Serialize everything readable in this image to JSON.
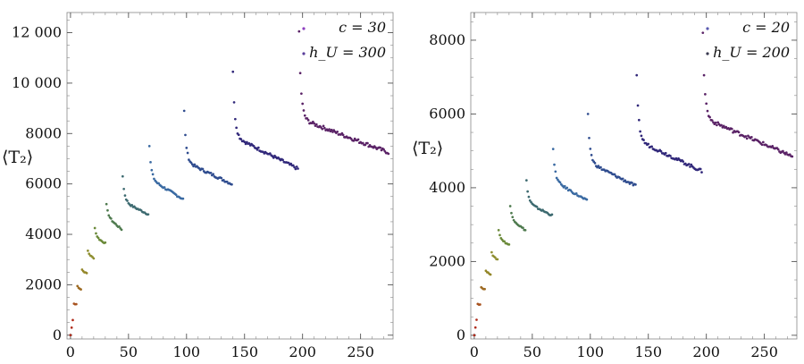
{
  "chart_data": [
    {
      "type": "scatter",
      "ylabel": "⟨T₂⟩",
      "xlim": [
        -3,
        278
      ],
      "ylim": [
        -150,
        12800
      ],
      "x_ticks": [
        0,
        50,
        100,
        150,
        200,
        250
      ],
      "x_tick_labels": [
        "0",
        "50",
        "100",
        "150",
        "200",
        "250"
      ],
      "y_ticks": [
        0,
        2000,
        4000,
        6000,
        8000,
        10000,
        12000
      ],
      "y_tick_labels": [
        "0",
        "2000",
        "4000",
        "6000",
        "8000",
        "10 000",
        "12 000"
      ],
      "legend_position": "top-right",
      "legend": [
        {
          "label": "c = 30",
          "color": "#8e3fc0"
        },
        {
          "label": "h_U = 300",
          "color": "#5a3e9a"
        }
      ],
      "grid": false,
      "segments": [
        {
          "x0": 0,
          "x1": 2,
          "peak": 20,
          "start": 0,
          "end": 600,
          "color": "#b02a1a"
        },
        {
          "x0": 3,
          "x1": 5,
          "peak": 1250,
          "start": 1150,
          "end": 1200,
          "color": "#a8521e"
        },
        {
          "x0": 6,
          "x1": 9,
          "peak": 1950,
          "start": 1850,
          "end": 1800,
          "color": "#9d6a22"
        },
        {
          "x0": 10,
          "x1": 14,
          "peak": 2600,
          "start": 2500,
          "end": 2450,
          "color": "#938628"
        },
        {
          "x0": 15,
          "x1": 20,
          "peak": 3350,
          "start": 3150,
          "end": 3050,
          "color": "#8f8f32"
        },
        {
          "x0": 21,
          "x1": 30,
          "peak": 4250,
          "start": 3850,
          "end": 3650,
          "color": "#6b8a3a"
        },
        {
          "x0": 31,
          "x1": 44,
          "peak": 5200,
          "start": 4700,
          "end": 4200,
          "color": "#4e7a4e"
        },
        {
          "x0": 45,
          "x1": 67,
          "peak": 6300,
          "start": 5300,
          "end": 4800,
          "color": "#3d6a70"
        },
        {
          "x0": 68,
          "x1": 97,
          "peak": 7500,
          "start": 6200,
          "end": 5400,
          "color": "#3a6aa2"
        },
        {
          "x0": 98,
          "x1": 139,
          "peak": 8900,
          "start": 6900,
          "end": 6000,
          "color": "#2f4c8f"
        },
        {
          "x0": 140,
          "x1": 196,
          "peak": 10450,
          "start": 7900,
          "end": 6600,
          "color": "#31287a"
        },
        {
          "x0": 197,
          "x1": 274,
          "peak": 12050,
          "start": 8600,
          "end": 7250,
          "color": "#5a2266"
        }
      ]
    },
    {
      "type": "scatter",
      "ylabel": "⟨T₂⟩",
      "xlim": [
        -3,
        278
      ],
      "ylim": [
        -100,
        8750
      ],
      "x_ticks": [
        0,
        50,
        100,
        150,
        200,
        250
      ],
      "x_tick_labels": [
        "0",
        "50",
        "100",
        "150",
        "200",
        "250"
      ],
      "y_ticks": [
        0,
        2000,
        4000,
        6000,
        8000
      ],
      "y_tick_labels": [
        "0",
        "2000",
        "4000",
        "6000",
        "8000"
      ],
      "legend_position": "top-right",
      "legend": [
        {
          "label": "c = 20",
          "color": "#5a5ab0"
        },
        {
          "label": "h_U = 200",
          "color": "#3a3a50"
        }
      ],
      "grid": false,
      "segments": [
        {
          "x0": 0,
          "x1": 2,
          "peak": 20,
          "start": 0,
          "end": 420,
          "color": "#b02a1a"
        },
        {
          "x0": 3,
          "x1": 5,
          "peak": 850,
          "start": 800,
          "end": 820,
          "color": "#a8521e"
        },
        {
          "x0": 6,
          "x1": 9,
          "peak": 1300,
          "start": 1250,
          "end": 1240,
          "color": "#9d6a22"
        },
        {
          "x0": 10,
          "x1": 14,
          "peak": 1750,
          "start": 1700,
          "end": 1650,
          "color": "#938628"
        },
        {
          "x0": 15,
          "x1": 20,
          "peak": 2250,
          "start": 2100,
          "end": 2050,
          "color": "#8f8f32"
        },
        {
          "x0": 21,
          "x1": 30,
          "peak": 2850,
          "start": 2600,
          "end": 2450,
          "color": "#6b8a3a"
        },
        {
          "x0": 31,
          "x1": 44,
          "peak": 3500,
          "start": 3150,
          "end": 2850,
          "color": "#4e7a4e"
        },
        {
          "x0": 45,
          "x1": 67,
          "peak": 4200,
          "start": 3600,
          "end": 3250,
          "color": "#3d6a70"
        },
        {
          "x0": 68,
          "x1": 97,
          "peak": 5050,
          "start": 4200,
          "end": 3650,
          "color": "#3a6aa2"
        },
        {
          "x0": 98,
          "x1": 139,
          "peak": 6000,
          "start": 4700,
          "end": 4050,
          "color": "#2f4c8f"
        },
        {
          "x0": 140,
          "x1": 196,
          "peak": 7050,
          "start": 5300,
          "end": 4450,
          "color": "#31287a"
        },
        {
          "x0": 197,
          "x1": 274,
          "peak": 8200,
          "start": 5900,
          "end": 4850,
          "color": "#5a2266"
        }
      ]
    }
  ]
}
